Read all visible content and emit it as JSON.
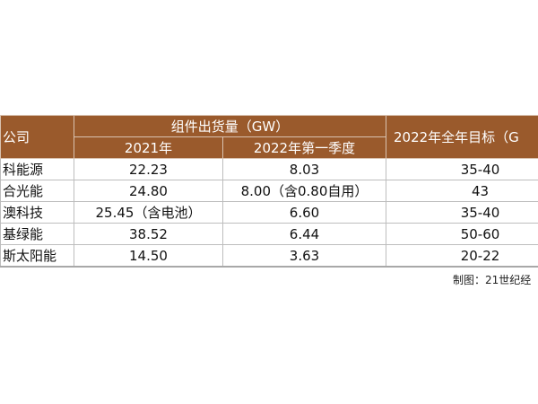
{
  "table": {
    "header": {
      "company": "公司",
      "shipment": "组件出货量（GW）",
      "year_2021": "2021年",
      "q1_2022": "2022年第一季度",
      "target": "2022年全年目标（G"
    },
    "rows": [
      [
        "科能源",
        "22.23",
        "8.03",
        "35-40"
      ],
      [
        "合光能",
        "24.80",
        "8.00（含0.80自用）",
        "43"
      ],
      [
        "澳科技",
        "25.45（含电池）",
        "6.60",
        "35-40"
      ],
      [
        "基绿能",
        "38.52",
        "6.44",
        "50-60"
      ],
      [
        "斯太阳能",
        "14.50",
        "3.63",
        "20-22"
      ]
    ]
  },
  "footer": "制图：21世纪经"
}
